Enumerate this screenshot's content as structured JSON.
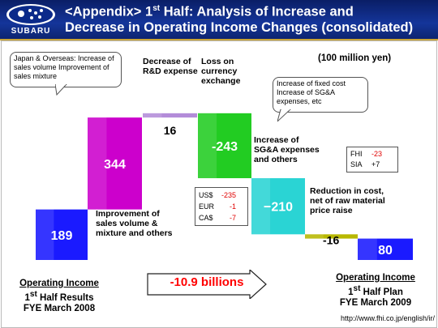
{
  "header": {
    "logo_text": "SUBARU",
    "title_line1_prefix": "<Appendix> 1",
    "title_line1_sup": "st",
    "title_line1_suffix": " Half: Analysis of Increase and",
    "title_line2": "Decrease in Operating Income Changes (consolidated)"
  },
  "unit_label": "(100 million yen)",
  "colors": {
    "operating_income": "#1a1aff",
    "sales_volume": "#cc00cc",
    "rnd": "#b38cd9",
    "fx": "#22cc22",
    "sga": "#2ad4d4",
    "raw_material": "#b8b800"
  },
  "chart_data": {
    "type": "waterfall",
    "unit": "100 million yen",
    "steps": [
      {
        "label": "Operating Income 1st Half Results FYE March 2008",
        "value": 189,
        "kind": "total"
      },
      {
        "label": "Improvement of sales volume & mixture and others",
        "value": 344,
        "kind": "increase"
      },
      {
        "label": "Decrease of R&D expense",
        "value": 16,
        "kind": "increase"
      },
      {
        "label": "Loss on currency exchange",
        "value": -243,
        "kind": "decrease"
      },
      {
        "label": "Increase of SG&A expenses and others",
        "value": -210,
        "kind": "decrease"
      },
      {
        "label": "Reduction in cost, net of raw material price raise",
        "value": -16,
        "kind": "decrease"
      },
      {
        "label": "Operating Income 1st Half Plan FYE March 2009",
        "value": 80,
        "kind": "total"
      }
    ],
    "value_labels": [
      "189",
      "344",
      "16",
      "-243",
      "−210",
      "-16",
      "80"
    ]
  },
  "labels": {
    "step_sales": "Improvement of sales volume & mixture and others",
    "step_rnd": "Decrease of R&D expense",
    "step_fx": "Loss on currency exchange",
    "step_sga": "Increase of SG&A expenses and others",
    "step_raw": "Reduction in cost, net of raw material price raise"
  },
  "callouts": {
    "sales": "Japan & Overseas: Increase of sales volume Improvement of sales mixture",
    "sga": "Increase of fixed cost Increase of SG&A expenses, etc"
  },
  "fx_breakdown": [
    {
      "currency": "US$",
      "value": "-235"
    },
    {
      "currency": "EUR",
      "value": "-1"
    },
    {
      "currency": "CA$",
      "value": "-7"
    }
  ],
  "raw_breakdown": [
    {
      "company": "FHI",
      "value": "-23"
    },
    {
      "company": "SIA",
      "value": "+7"
    }
  ],
  "bottom": {
    "left_title": "Operating Income",
    "left_half_num": "1",
    "left_half_sup": "st",
    "left_half_rest": " Half Results",
    "left_fye": "FYE March 2008",
    "right_title": "Operating Income",
    "right_half_num": "1",
    "right_half_sup": "st",
    "right_half_rest": " Half Plan",
    "right_fye": "FYE March 2009",
    "difference": "-10.9 billions"
  },
  "footer_url": "http://www.fhi.co.jp/english/ir/"
}
